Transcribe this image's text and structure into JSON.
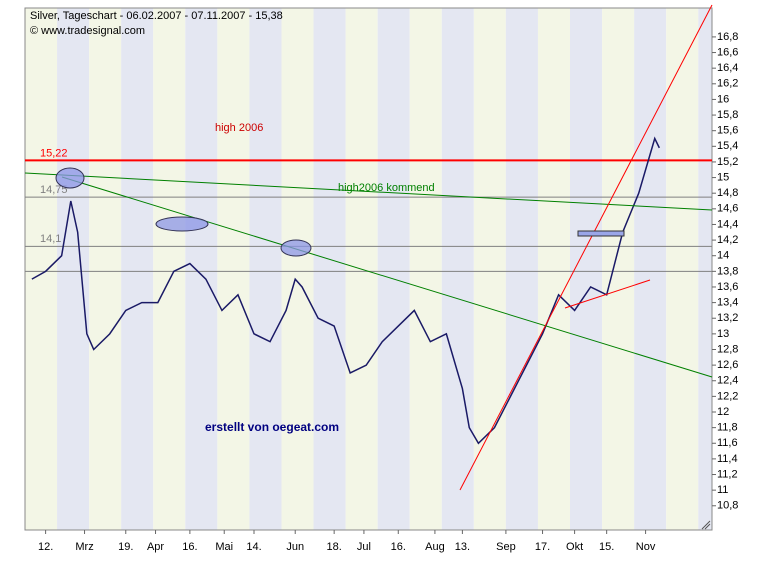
{
  "chart_data": {
    "type": "line",
    "title": "Silver, Tageschart - 06.02.2007 - 07.11.2007 - 15,38",
    "subtitle": "© www.tradesignal.com",
    "annotations": [
      "high 2006",
      "high2006 kommend",
      "erstellt von oegeat.com"
    ],
    "series": [
      {
        "name": "Silver",
        "color": "#1a1a66",
        "x": [
          "2007-02-06",
          "2007-02-12",
          "2007-02-19",
          "2007-02-23",
          "2007-02-26",
          "2007-03-02",
          "2007-03-05",
          "2007-03-12",
          "2007-03-19",
          "2007-03-26",
          "2007-04-02",
          "2007-04-09",
          "2007-04-16",
          "2007-04-23",
          "2007-04-30",
          "2007-05-07",
          "2007-05-14",
          "2007-05-21",
          "2007-05-28",
          "2007-06-01",
          "2007-06-04",
          "2007-06-11",
          "2007-06-18",
          "2007-06-25",
          "2007-07-02",
          "2007-07-09",
          "2007-07-16",
          "2007-07-23",
          "2007-07-30",
          "2007-08-06",
          "2007-08-13",
          "2007-08-16",
          "2007-08-20",
          "2007-08-27",
          "2007-09-03",
          "2007-09-10",
          "2007-09-17",
          "2007-09-24",
          "2007-10-01",
          "2007-10-08",
          "2007-10-15",
          "2007-10-22",
          "2007-10-29",
          "2007-11-05",
          "2007-11-07"
        ],
        "values": [
          13.7,
          13.8,
          14.0,
          14.7,
          14.3,
          13.0,
          12.8,
          13.0,
          13.3,
          13.4,
          13.4,
          13.8,
          13.9,
          13.7,
          13.3,
          13.5,
          13.0,
          12.9,
          13.3,
          13.7,
          13.6,
          13.2,
          13.1,
          12.5,
          12.6,
          12.9,
          13.1,
          13.3,
          12.9,
          13.0,
          12.3,
          11.8,
          11.6,
          11.8,
          12.2,
          12.6,
          13.0,
          13.5,
          13.3,
          13.6,
          13.5,
          14.3,
          14.8,
          15.5,
          15.38
        ]
      }
    ],
    "levels": [
      {
        "value": 15.22,
        "label": "15,22",
        "color": "#ff0000"
      },
      {
        "value": 14.75,
        "label": "14,75",
        "color": "#808080"
      },
      {
        "value": 14.12,
        "label": "14,1",
        "color": "#808080"
      },
      {
        "value": 13.8,
        "color": "#808080"
      }
    ],
    "xlim": [
      "2007-02-03",
      "2007-11-30"
    ],
    "xticks": [
      {
        "value": "2007-02-12",
        "label": "12."
      },
      {
        "value": "2007-03-01",
        "label": "Mrz"
      },
      {
        "value": "2007-03-19",
        "label": "19."
      },
      {
        "value": "2007-04-01",
        "label": "Apr"
      },
      {
        "value": "2007-04-16",
        "label": "16."
      },
      {
        "value": "2007-05-01",
        "label": "Mai"
      },
      {
        "value": "2007-05-14",
        "label": "14."
      },
      {
        "value": "2007-06-01",
        "label": "Jun"
      },
      {
        "value": "2007-06-18",
        "label": "18."
      },
      {
        "value": "2007-07-01",
        "label": "Jul"
      },
      {
        "value": "2007-07-16",
        "label": "16."
      },
      {
        "value": "2007-08-01",
        "label": "Aug"
      },
      {
        "value": "2007-08-13",
        "label": "13."
      },
      {
        "value": "2007-09-01",
        "label": "Sep"
      },
      {
        "value": "2007-09-17",
        "label": "17."
      },
      {
        "value": "2007-10-01",
        "label": "Okt"
      },
      {
        "value": "2007-10-15",
        "label": "15."
      },
      {
        "value": "2007-11-01",
        "label": "Nov"
      }
    ],
    "ylim": [
      10.49,
      17.17
    ],
    "yticks": [
      {
        "value": 10.8,
        "label": "10,8"
      },
      11,
      {
        "value": 11.2,
        "label": "11,2"
      },
      {
        "value": 11.4,
        "label": "11,4"
      },
      {
        "value": 11.6,
        "label": "11,6"
      },
      {
        "value": 11.8,
        "label": "11,8"
      },
      12,
      {
        "value": 12.2,
        "label": "12,2"
      },
      {
        "value": 12.4,
        "label": "12,4"
      },
      {
        "value": 12.6,
        "label": "12,6"
      },
      {
        "value": 12.8,
        "label": "12,8"
      },
      13,
      {
        "value": 13.2,
        "label": "13,2"
      },
      {
        "value": 13.4,
        "label": "13,4"
      },
      {
        "value": 13.6,
        "label": "13,6"
      },
      {
        "value": 13.8,
        "label": "13,8"
      },
      14,
      {
        "value": 14.2,
        "label": "14,2"
      },
      {
        "value": 14.4,
        "label": "14,4"
      },
      {
        "value": 14.6,
        "label": "14,6"
      },
      {
        "value": 14.8,
        "label": "14,8"
      },
      15,
      {
        "value": 15.2,
        "label": "15,2"
      },
      {
        "value": 15.4,
        "label": "15,4"
      },
      {
        "value": 15.6,
        "label": "15,6"
      },
      {
        "value": 15.8,
        "label": "15,8"
      },
      16,
      {
        "value": 16.2,
        "label": "16,2"
      },
      {
        "value": 16.4,
        "label": "16,4"
      },
      {
        "value": 16.6,
        "label": "16,6"
      },
      {
        "value": 16.8,
        "label": "16,8"
      }
    ]
  }
}
